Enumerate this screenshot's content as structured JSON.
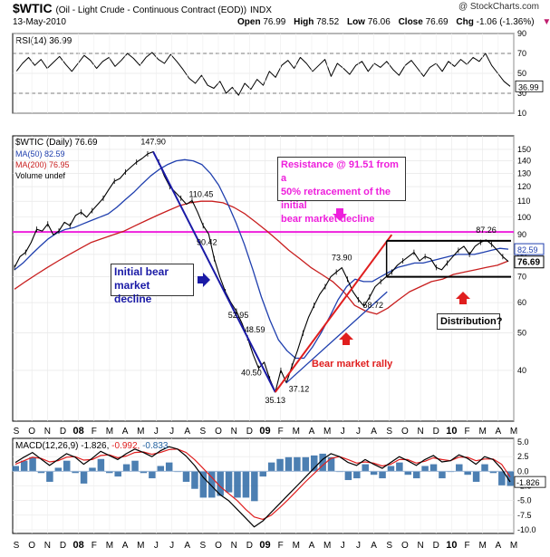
{
  "header": {
    "ticker": "$WTIC",
    "ticker_desc": "(Oil - Light Crude - Continuous Contract (EOD))",
    "exchange": "INDX",
    "date": "13-May-2010",
    "open_label": "Open",
    "open": "76.99",
    "high_label": "High",
    "high": "78.52",
    "low_label": "Low",
    "low": "76.06",
    "close_label": "Close",
    "close": "76.69",
    "chg_label": "Chg",
    "chg": "-1.06 (-1.36%)",
    "brand": "@ StockCharts.com"
  },
  "legend": {
    "rsi": "RSI(14) 36.99",
    "price": "$WTIC (Daily) 76.69",
    "ma50": "MA(50) 82.59",
    "ma200": "MA(200) 76.95",
    "volume": "Volume undef",
    "macd_prefix": "MACD(12,26,9) -1.826,",
    "macd_signal": "-0.992,",
    "macd_hist": "-0.833"
  },
  "annotations": {
    "resistance_l1": "Resistance @ 91.51 from a",
    "resistance_l2": "50% retracement of the initial",
    "resistance_l3": "bear market decline",
    "initial_l1": "Initial bear",
    "initial_l2": "market decline",
    "rally": "Bear market rally",
    "distribution": "Distribution?"
  },
  "colors": {
    "price": "#000000",
    "ma50": "#1f3fae",
    "ma200": "#c81e1e",
    "resistance": "#ee1fdc",
    "annotation_blue": "#1a1aa6",
    "annotation_red": "#e01e1e",
    "macd_signal": "#e01e1e",
    "macd_hist": "#1f5f9f",
    "price_badge": "#1f3fae",
    "ma200_badge": "#c81e1e"
  },
  "chart_data": [
    {
      "type": "line",
      "panel": "RSI(14)",
      "ylim": [
        10,
        90
      ],
      "y_ticks": [
        "90",
        "70",
        "50",
        "30",
        "10"
      ],
      "last_value": "36.99",
      "overbought": 70,
      "oversold": 30,
      "series": [
        {
          "name": "RSI(14)",
          "values": [
            52,
            60,
            66,
            58,
            64,
            55,
            61,
            67,
            59,
            52,
            60,
            68,
            63,
            55,
            62,
            66,
            57,
            63,
            70,
            65,
            58,
            66,
            71,
            64,
            60,
            69,
            62,
            54,
            45,
            40,
            48,
            38,
            35,
            42,
            30,
            36,
            28,
            40,
            34,
            44,
            38,
            52,
            46,
            58,
            63,
            55,
            66,
            60,
            52,
            58,
            64,
            47,
            60,
            55,
            49,
            58,
            62,
            52,
            60,
            56,
            62,
            54,
            48,
            58,
            63,
            55,
            47,
            56,
            60,
            52,
            62,
            57,
            64,
            59,
            66,
            62,
            70,
            58,
            50,
            42,
            37
          ]
        }
      ]
    },
    {
      "type": "line",
      "panel": "$WTIC (Daily)",
      "scale": "log",
      "ylim": [
        30,
        160
      ],
      "y_ticks": [
        "150",
        "140",
        "130",
        "120",
        "110",
        "100",
        "90",
        "80",
        "70",
        "60",
        "50",
        "40"
      ],
      "x_ticks": [
        "S",
        "O",
        "N",
        "D",
        "08",
        "F",
        "M",
        "A",
        "M",
        "J",
        "J",
        "A",
        "S",
        "O",
        "N",
        "D",
        "09",
        "F",
        "M",
        "A",
        "M",
        "J",
        "J",
        "A",
        "S",
        "O",
        "N",
        "D",
        "10",
        "F",
        "M",
        "A",
        "M"
      ],
      "price_labels": [
        "147.90",
        "110.45",
        "90.42",
        "52.95",
        "48.59",
        "40.50",
        "35.13",
        "37.12",
        "73.90",
        "58.72",
        "87.26"
      ],
      "badges": [
        "82.59",
        "76.69"
      ],
      "resistance": 91.51,
      "series": [
        {
          "name": "$WTIC (Daily)",
          "values": [
            74,
            79,
            81,
            86,
            93,
            92,
            96,
            90,
            92,
            97,
            95,
            101,
            103,
            100,
            104,
            108,
            112,
            118,
            124,
            126,
            131,
            135,
            139,
            142,
            146,
            147.9,
            139,
            128,
            120,
            116,
            112,
            108,
            110.45,
            103,
            95,
            90.42,
            78,
            70,
            64,
            60,
            57,
            52.95,
            48.59,
            44,
            40.5,
            42,
            38,
            35.13,
            40,
            37.12,
            41,
            45,
            50,
            55,
            59,
            63,
            66,
            70,
            72,
            73.9,
            69,
            64,
            61,
            58.72,
            62,
            66,
            68,
            70,
            72,
            75,
            77,
            79,
            81,
            77,
            79,
            78,
            74,
            73,
            76,
            79,
            82,
            84,
            80,
            84,
            86,
            87.26,
            85,
            82,
            79,
            76.69
          ]
        },
        {
          "name": "MA(50)",
          "values": [
            73,
            76,
            80,
            84,
            88,
            91,
            93,
            94,
            96,
            98,
            100,
            102,
            106,
            111,
            116,
            122,
            128,
            133,
            137,
            140,
            141,
            140,
            137,
            130,
            121,
            109,
            97,
            85,
            73,
            62,
            54,
            48,
            45,
            43,
            43,
            46,
            50,
            55,
            61,
            66,
            69,
            68,
            68,
            70,
            72,
            74,
            75,
            76,
            76,
            77,
            78,
            79,
            80,
            80,
            80,
            81,
            82,
            83,
            82.59
          ]
        },
        {
          "name": "MA(200)",
          "values": [
            65,
            68,
            71,
            74,
            77,
            80,
            83,
            86,
            88,
            90,
            92,
            95,
            98,
            101,
            104,
            107,
            109,
            110,
            110,
            109,
            106,
            102,
            97,
            92,
            87,
            82,
            78,
            74,
            71,
            68,
            64,
            59,
            57,
            56,
            58,
            61,
            64,
            66,
            68,
            69,
            71,
            72,
            73,
            74,
            75,
            76.95
          ]
        }
      ]
    },
    {
      "type": "line",
      "panel": "MACD(12,26,9)",
      "ylim": [
        -10,
        5
      ],
      "y_ticks": [
        "5.0",
        "2.5",
        "0.0",
        "-2.5",
        "-5.0",
        "-7.5",
        "-10.0"
      ],
      "last_value": "-1.826",
      "series": [
        {
          "name": "MACD",
          "values": [
            1.5,
            2.4,
            3.2,
            2.1,
            1.0,
            2.0,
            3.0,
            2.4,
            1.2,
            2.2,
            3.4,
            2.7,
            2.0,
            3.0,
            3.8,
            3.2,
            2.5,
            3.5,
            4.2,
            3.8,
            2.6,
            1.0,
            -1.0,
            -2.5,
            -4.0,
            -5.0,
            -6.5,
            -8.0,
            -9.5,
            -8.5,
            -7.0,
            -5.5,
            -4.0,
            -2.5,
            -1.0,
            0.5,
            2.0,
            3.0,
            2.5,
            1.5,
            1.0,
            2.0,
            1.2,
            0.5,
            1.5,
            2.5,
            1.8,
            1.0,
            2.0,
            2.7,
            1.6,
            1.8,
            2.8,
            2.2,
            1.2,
            2.5,
            2.0,
            0.4,
            -1.826
          ]
        },
        {
          "name": "Signal",
          "values": [
            1.2,
            1.8,
            2.4,
            2.2,
            1.6,
            1.8,
            2.4,
            2.5,
            1.9,
            2.0,
            2.7,
            2.8,
            2.3,
            2.6,
            3.2,
            3.3,
            2.9,
            3.2,
            3.7,
            3.8,
            3.2,
            2.0,
            0.5,
            -1.0,
            -2.6,
            -3.8,
            -5.0,
            -6.5,
            -7.8,
            -8.2,
            -7.5,
            -6.2,
            -4.8,
            -3.3,
            -1.8,
            -0.4,
            1.0,
            2.2,
            2.5,
            2.0,
            1.4,
            1.6,
            1.4,
            0.9,
            1.2,
            2.0,
            2.0,
            1.4,
            1.7,
            2.3,
            2.0,
            1.8,
            2.4,
            2.4,
            1.8,
            2.1,
            2.1,
            1.2,
            -0.992
          ]
        }
      ]
    }
  ]
}
